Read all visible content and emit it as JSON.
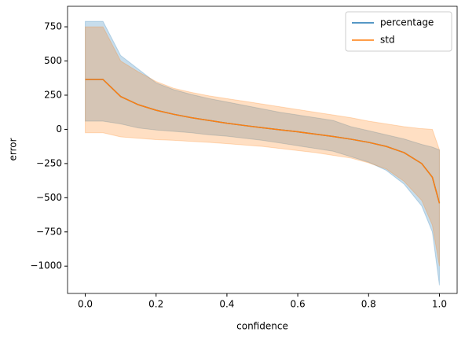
{
  "chart_data": {
    "type": "line",
    "x_label": "confidence",
    "y_label": "error",
    "x": [
      0,
      0.05,
      0.1,
      0.15,
      0.2,
      0.25,
      0.3,
      0.35,
      0.4,
      0.45,
      0.5,
      0.55,
      0.6,
      0.65,
      0.7,
      0.75,
      0.8,
      0.85,
      0.9,
      0.95,
      0.98,
      1.0
    ],
    "series": [
      {
        "name": "percentage",
        "color": "#1f77b4",
        "values": [
          365,
          365,
          240,
          180,
          140,
          110,
          85,
          65,
          45,
          28,
          12,
          -3,
          -18,
          -35,
          -52,
          -72,
          -95,
          -125,
          -170,
          -250,
          -350,
          -540
        ],
        "upper": [
          790,
          790,
          540,
          440,
          340,
          290,
          255,
          225,
          200,
          175,
          150,
          125,
          105,
          85,
          65,
          20,
          -10,
          -40,
          -70,
          -110,
          -130,
          -150
        ],
        "lower": [
          60,
          60,
          40,
          10,
          -5,
          -15,
          -25,
          -40,
          -50,
          -65,
          -80,
          -100,
          -120,
          -140,
          -160,
          -200,
          -240,
          -300,
          -400,
          -560,
          -750,
          -1140
        ]
      },
      {
        "name": "std",
        "color": "#ff7f0e",
        "values": [
          365,
          365,
          240,
          180,
          140,
          110,
          85,
          65,
          45,
          28,
          12,
          -3,
          -18,
          -35,
          -52,
          -72,
          -95,
          -125,
          -170,
          -250,
          -350,
          -540
        ],
        "upper": [
          750,
          750,
          500,
          420,
          350,
          300,
          270,
          245,
          225,
          205,
          185,
          165,
          145,
          125,
          105,
          85,
          60,
          40,
          20,
          5,
          0,
          -150
        ],
        "lower": [
          -25,
          -25,
          -55,
          -65,
          -75,
          -80,
          -88,
          -95,
          -105,
          -115,
          -125,
          -140,
          -155,
          -170,
          -190,
          -210,
          -245,
          -290,
          -380,
          -520,
          -700,
          -1000
        ]
      }
    ],
    "xlim": [
      -0.05,
      1.05
    ],
    "xticks": [
      {
        "value": 0,
        "label": "0.0"
      },
      0.2,
      0.4,
      0.6,
      0.8,
      {
        "value": 1,
        "label": "1.0"
      }
    ],
    "ylim": [
      -1200,
      900
    ],
    "yticks": [
      {
        "value": -1000,
        "label": "−1000"
      },
      {
        "value": -750,
        "label": "−750"
      },
      {
        "value": -500,
        "label": "−500"
      },
      {
        "value": -250,
        "label": "−250"
      },
      0,
      250,
      500,
      750
    ],
    "legend": "upper right",
    "band_opacity": 0.25
  }
}
